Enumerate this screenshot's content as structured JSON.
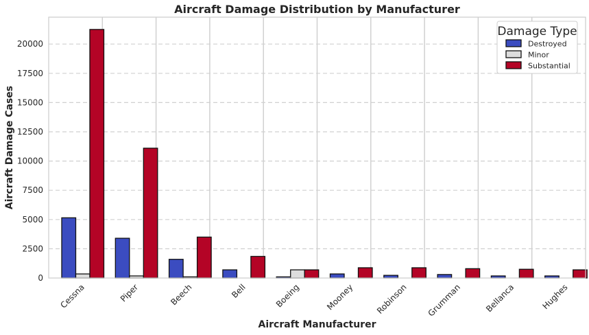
{
  "chart_data": {
    "type": "bar",
    "title": "Aircraft Damage Distribution by Manufacturer",
    "xlabel": "Aircraft Manufacturer",
    "ylabel": "Aircraft Damage Cases",
    "categories": [
      "Cessna",
      "Piper",
      "Beech",
      "Bell",
      "Boeing",
      "Mooney",
      "Robinson",
      "Grumman",
      "Bellanca",
      "Hughes"
    ],
    "series": [
      {
        "name": "Destroyed",
        "color": "#3b4cc0",
        "values": [
          5150,
          3400,
          1600,
          700,
          100,
          350,
          230,
          300,
          180,
          180
        ]
      },
      {
        "name": "Minor",
        "color": "#dddddd",
        "values": [
          350,
          180,
          100,
          0,
          700,
          0,
          0,
          0,
          0,
          0
        ]
      },
      {
        "name": "Substantial",
        "color": "#b40426",
        "values": [
          21250,
          11100,
          3500,
          1850,
          700,
          880,
          880,
          800,
          750,
          700
        ]
      }
    ],
    "ylim": [
      0,
      22300
    ],
    "yticks": [
      0,
      2500,
      5000,
      7500,
      10000,
      12500,
      15000,
      17500,
      20000
    ],
    "legend": {
      "title": "Damage Type",
      "position": "top-right"
    },
    "grid": true
  }
}
